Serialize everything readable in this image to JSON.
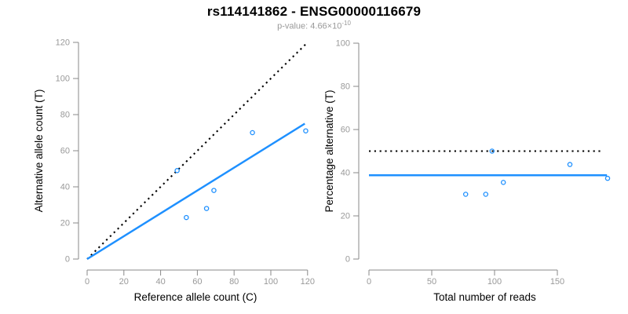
{
  "header": {
    "title": "rs114141862 - ENSG00000116679",
    "subtitle_prefix": "p-value: 4.66×10",
    "subtitle_exponent": "-10"
  },
  "colors": {
    "accent_blue": "#1e90ff",
    "line_black": "#000000",
    "axis_line_gray": "#888888",
    "tick_label_gray": "#999999",
    "axis_title_black": "#000000",
    "subtitle_gray": "#999999",
    "background": "#ffffff"
  },
  "chart_data": [
    {
      "type": "scatter",
      "name": "allele-counts-scatter",
      "xlabel": "Reference allele count (C)",
      "ylabel": "Alternative allele count (T)",
      "xlim": [
        0,
        122
      ],
      "ylim": [
        0,
        120
      ],
      "xticks": [
        0,
        20,
        40,
        60,
        80,
        100,
        120
      ],
      "yticks": [
        0,
        20,
        40,
        60,
        80,
        100,
        120
      ],
      "grid": false,
      "legend": "none",
      "points": [
        {
          "x": 49,
          "y": 49
        },
        {
          "x": 54,
          "y": 23
        },
        {
          "x": 65,
          "y": 28
        },
        {
          "x": 69,
          "y": 38
        },
        {
          "x": 90,
          "y": 70
        },
        {
          "x": 119,
          "y": 71
        }
      ],
      "lines": [
        {
          "name": "identity-line",
          "style": "dotted",
          "color": "#000000",
          "x1": 0,
          "y1": 0,
          "x2": 119.5,
          "y2": 119.5
        },
        {
          "name": "regression-line",
          "style": "solid",
          "color": "#1e90ff",
          "x1": 0,
          "y1": 0,
          "x2": 118.5,
          "y2": 75
        }
      ]
    },
    {
      "type": "scatter",
      "name": "percentage-vs-reads-scatter",
      "xlabel": "Total number of reads",
      "ylabel": "Percentage alternative (T)",
      "xlim": [
        0,
        192
      ],
      "ylim": [
        0,
        100
      ],
      "xticks": [
        0,
        50,
        100,
        150
      ],
      "yticks": [
        0,
        20,
        40,
        60,
        80,
        100
      ],
      "grid": false,
      "legend": "none",
      "points": [
        {
          "x": 77,
          "y": 30
        },
        {
          "x": 93,
          "y": 30
        },
        {
          "x": 98,
          "y": 50
        },
        {
          "x": 107,
          "y": 35.5
        },
        {
          "x": 160,
          "y": 43.8
        },
        {
          "x": 190,
          "y": 37.4
        }
      ],
      "lines": [
        {
          "name": "expected-50-percent-line",
          "style": "dotted",
          "color": "#000000",
          "x1": 0,
          "y1": 50,
          "x2": 187,
          "y2": 50
        },
        {
          "name": "mean-percentage-line",
          "style": "solid",
          "color": "#1e90ff",
          "x1": 0,
          "y1": 38.8,
          "x2": 189.5,
          "y2": 38.8
        }
      ]
    }
  ]
}
